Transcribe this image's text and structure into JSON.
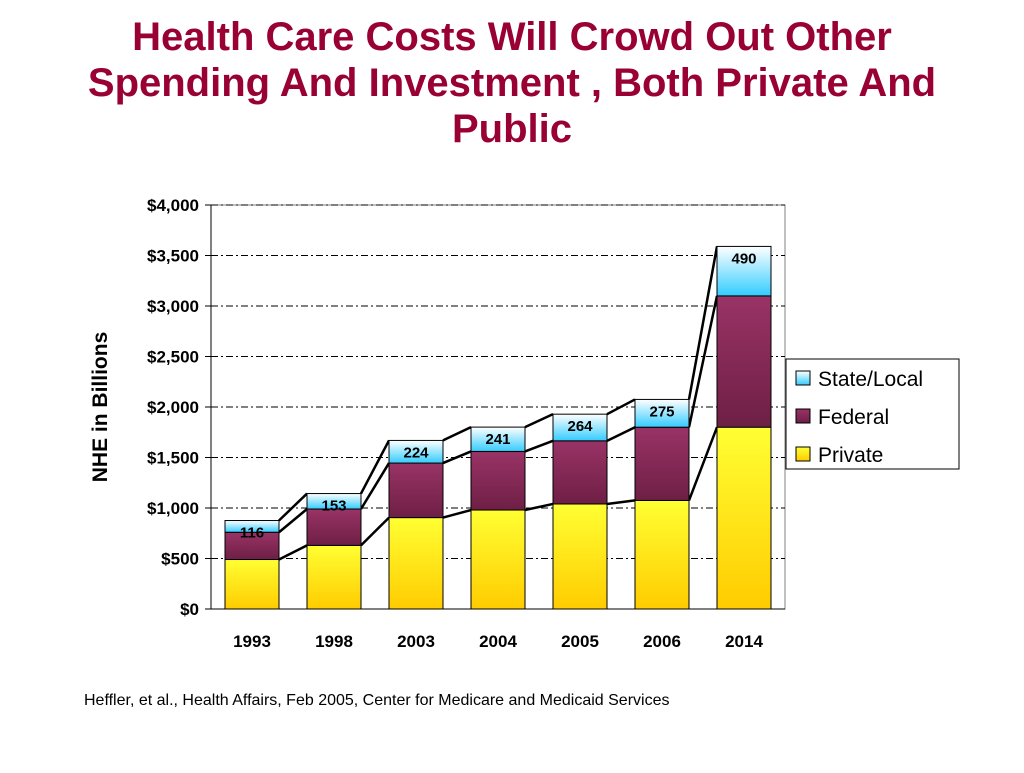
{
  "slide": {
    "title": "Health Care Costs Will Crowd Out Other Spending And Investment , Both Private And Public",
    "footnote": "Heffler, et al., Health Affairs, Feb 2005, Center for Medicare and Medicaid Services"
  },
  "colors": {
    "title": "#990033",
    "private_top": "#FFFF33",
    "private_bottom": "#FFCC00",
    "federal_top": "#993366",
    "federal_bottom": "#6E1F45",
    "state_top": "#FFFFFF",
    "state_bottom": "#33CCFF"
  },
  "chart_data": {
    "type": "bar",
    "stacked": true,
    "categories": [
      "1993",
      "1998",
      "2003",
      "2004",
      "2005",
      "2006",
      "2014"
    ],
    "series": [
      {
        "name": "Private",
        "values": [
          490,
          630,
          905,
          980,
          1040,
          1075,
          1800
        ]
      },
      {
        "name": "Federal",
        "values": [
          270,
          360,
          540,
          580,
          625,
          725,
          1300
        ]
      },
      {
        "name": "State/Local",
        "values": [
          116,
          153,
          224,
          241,
          264,
          275,
          490
        ]
      }
    ],
    "data_labels": [
      "116",
      "153",
      "224",
      "241",
      "264",
      "275",
      "490"
    ],
    "ylabel": "NHE in Billions",
    "xlabel": "",
    "ylim": [
      0,
      4000
    ],
    "yticks": [
      0,
      500,
      1000,
      1500,
      2000,
      2500,
      3000,
      3500,
      4000
    ],
    "ytick_labels": [
      "$0",
      "$500",
      "$1,000",
      "$1,500",
      "$2,000",
      "$2,500",
      "$3,000",
      "$3,500",
      "$4,000"
    ],
    "grid": true,
    "legend": {
      "position": "right",
      "entries": [
        "State/Local",
        "Federal",
        "Private"
      ]
    }
  }
}
